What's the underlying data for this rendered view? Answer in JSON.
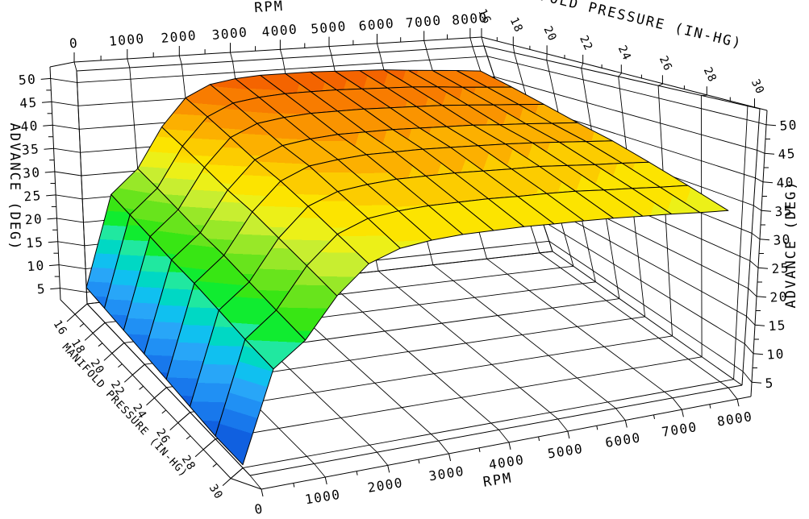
{
  "chart_data": {
    "type": "heatmap",
    "representation": "3d-surface-mesh",
    "title": "",
    "background": "#ffffff",
    "line_color": "#000000",
    "axes": {
      "rpm": {
        "label": "RPM",
        "min": 0,
        "max": 8000,
        "major_step": 1000,
        "minor_step": 500,
        "tick_labels": [
          "0",
          "1000",
          "2000",
          "3000",
          "4000",
          "5000",
          "6000",
          "7000",
          "8000"
        ]
      },
      "manifold_pressure": {
        "label": "MANIFOLD PRESSURE (IN-HG)",
        "min": 16,
        "max": 30,
        "major_step": 2,
        "minor_step": 1,
        "tick_labels": [
          "16",
          "18",
          "20",
          "22",
          "24",
          "26",
          "28",
          "30"
        ]
      },
      "advance": {
        "label": "ADVANCE (DEG)",
        "min": 5,
        "max": 50,
        "major_step": 5,
        "minor_step": 2.5,
        "tick_labels": [
          "5",
          "10",
          "15",
          "20",
          "25",
          "30",
          "35",
          "40",
          "45",
          "50"
        ]
      }
    },
    "rpm_points": [
      0,
      500,
      1000,
      1500,
      2000,
      2500,
      3000,
      3500,
      4000,
      4500,
      5000,
      5500,
      6000,
      6500,
      7000,
      7500,
      8000
    ],
    "map_points": [
      16,
      18,
      20,
      22,
      24,
      26,
      28,
      30
    ],
    "advance_table": [
      [
        6,
        25.4,
        30.5,
        39.1,
        45.1,
        47.7,
        48.6,
        49,
        49,
        49,
        48.8,
        48.6,
        48.4,
        47.9,
        47.5,
        47.1,
        46.6
      ],
      [
        5.5,
        24.2,
        29.2,
        37.5,
        43.3,
        45.8,
        46.6,
        47,
        47,
        47,
        46.8,
        46.6,
        46.4,
        46,
        45.5,
        45.1,
        44.7
      ],
      [
        5,
        23,
        27.8,
        35.8,
        41.4,
        43.8,
        44.6,
        45,
        45,
        45,
        44.8,
        44.6,
        44.4,
        44,
        43.6,
        43.2,
        42.8
      ],
      [
        4.5,
        21.8,
        26.4,
        34.1,
        39.5,
        41.8,
        42.6,
        43,
        43,
        43,
        42.8,
        42.6,
        42.4,
        42,
        41.7,
        41.3,
        40.9
      ],
      [
        4,
        20.9,
        25.4,
        32.9,
        38.1,
        40.4,
        41.1,
        41.5,
        41.5,
        41.5,
        41.3,
        41.1,
        40.9,
        40.6,
        40.2,
        39.8,
        39.4
      ],
      [
        3.5,
        19.7,
        24,
        31.2,
        36.3,
        38.4,
        39.1,
        39.5,
        39.5,
        39.5,
        39.3,
        39.1,
        39,
        38.6,
        38.2,
        37.9,
        37.5
      ],
      [
        3,
        18.5,
        22.7,
        29.6,
        34.4,
        36.5,
        37.2,
        37.5,
        37.5,
        37.5,
        37.3,
        37.2,
        37,
        36.6,
        36.3,
        35.9,
        35.6
      ],
      [
        3,
        17.6,
        21.5,
        28,
        32.6,
        34.5,
        35.2,
        35.5,
        35.5,
        35.5,
        35.3,
        35.2,
        35,
        34.7,
        34.4,
        34,
        33.7
      ]
    ],
    "contour_band_size": 2.5,
    "band_value_start": 2.5,
    "band_colors": [
      "#1060E0",
      "#1878EC",
      "#2090F4",
      "#28A6F8",
      "#10C0F0",
      "#00D8C4",
      "#20E8A0",
      "#10EC30",
      "#38E614",
      "#68E41C",
      "#98E828",
      "#C8EE30",
      "#ECF018",
      "#FCE400",
      "#FCCC00",
      "#FCB000",
      "#FA9400",
      "#F87C00",
      "#F46400",
      "#F05000"
    ]
  }
}
